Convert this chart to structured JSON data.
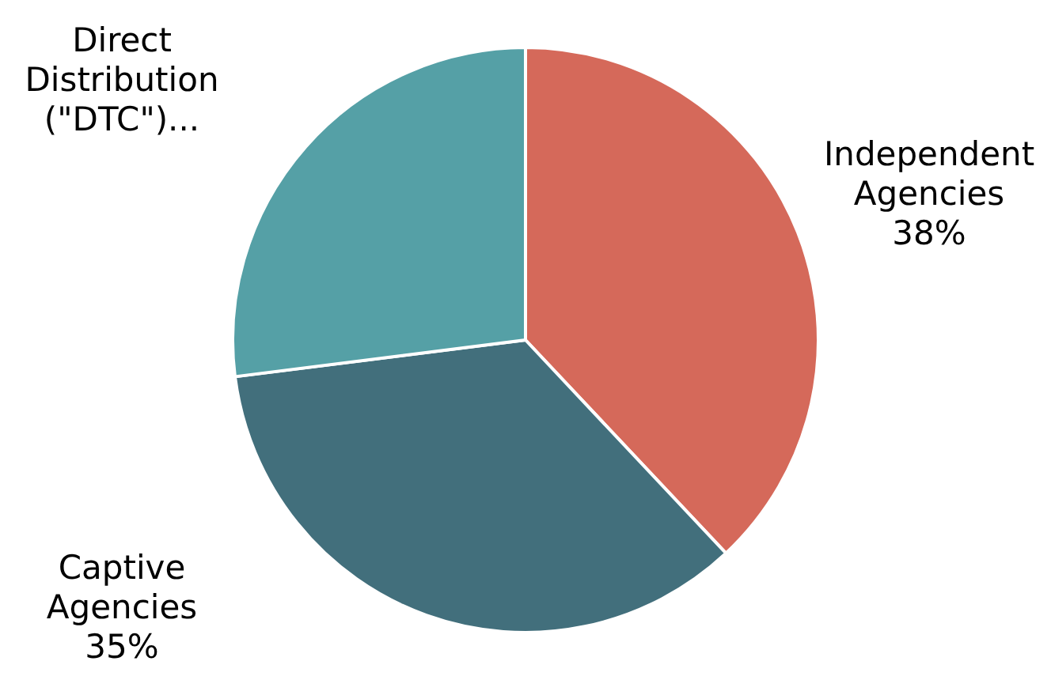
{
  "chart_data": {
    "type": "pie",
    "categories": [
      "Independent Agencies",
      "Captive Agencies",
      "Direct Distribution (\"DTC\")..."
    ],
    "values": [
      38,
      35,
      27
    ],
    "colors": [
      "#d5695a",
      "#426f7c",
      "#55a0a6"
    ],
    "value_labels": [
      "38%",
      "35%",
      null
    ]
  }
}
